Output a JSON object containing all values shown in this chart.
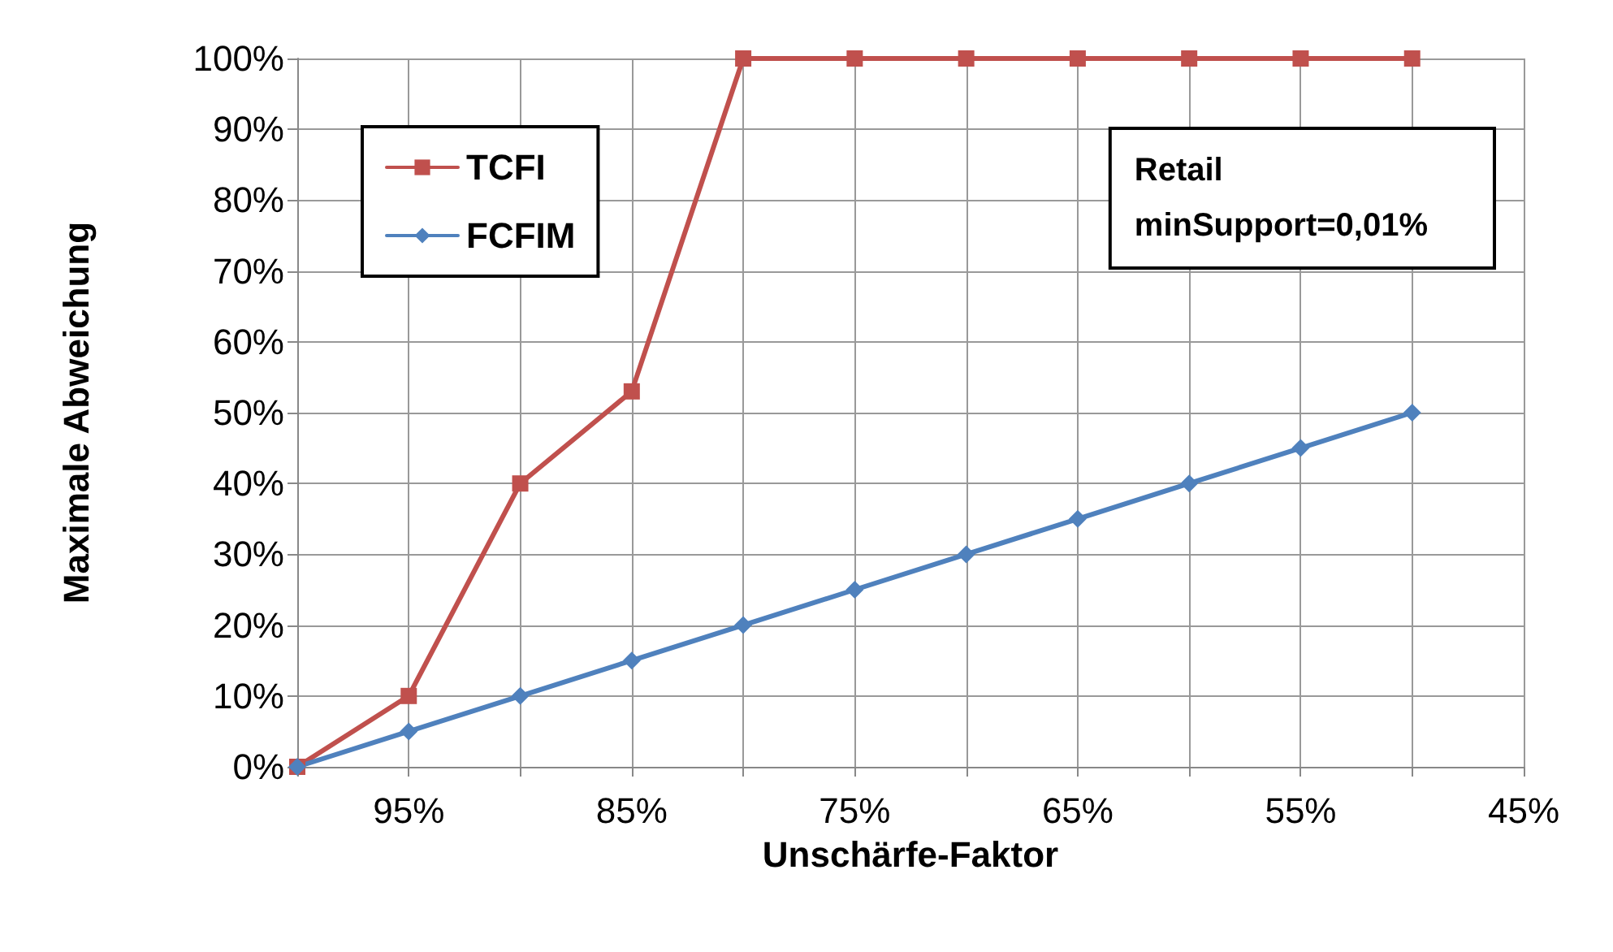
{
  "chart_data": {
    "type": "line",
    "xlabel": "Unschärfe-Faktor",
    "ylabel": "Maximale Abweichung",
    "x": [
      100,
      95,
      90,
      85,
      80,
      75,
      70,
      65,
      60,
      55,
      50
    ],
    "series": [
      {
        "name": "TCFI",
        "color": "#c0504d",
        "marker": "square",
        "values": [
          0,
          10,
          40,
          53,
          100,
          100,
          100,
          100,
          100,
          100,
          100
        ]
      },
      {
        "name": "FCFIM",
        "color": "#4f81bd",
        "marker": "diamond",
        "values": [
          0,
          5,
          10,
          15,
          20,
          25,
          30,
          35,
          40,
          45,
          50
        ]
      }
    ],
    "xlim": [
      100,
      45
    ],
    "xticks": [
      {
        "value": 100,
        "label": null
      },
      {
        "value": 95,
        "label": "95%"
      },
      {
        "value": 90,
        "label": null
      },
      {
        "value": 85,
        "label": "85%"
      },
      {
        "value": 80,
        "label": null
      },
      {
        "value": 75,
        "label": "75%"
      },
      {
        "value": 70,
        "label": null
      },
      {
        "value": 65,
        "label": "65%"
      },
      {
        "value": 60,
        "label": null
      },
      {
        "value": 55,
        "label": "55%"
      },
      {
        "value": 50,
        "label": null
      },
      {
        "value": 45,
        "label": "45%"
      }
    ],
    "ylim": [
      0,
      100
    ],
    "yticks": [
      {
        "value": 0,
        "label": "0%"
      },
      {
        "value": 10,
        "label": "10%"
      },
      {
        "value": 20,
        "label": "20%"
      },
      {
        "value": 30,
        "label": "30%"
      },
      {
        "value": 40,
        "label": "40%"
      },
      {
        "value": 50,
        "label": "50%"
      },
      {
        "value": 60,
        "label": "60%"
      },
      {
        "value": 70,
        "label": "70%"
      },
      {
        "value": 80,
        "label": "80%"
      },
      {
        "value": 90,
        "label": "90%"
      },
      {
        "value": 100,
        "label": "100%"
      }
    ],
    "annotations": [
      "Retail\nminSupport=0,01%"
    ],
    "grid": true,
    "legend": "top left",
    "line_style": "solid"
  }
}
